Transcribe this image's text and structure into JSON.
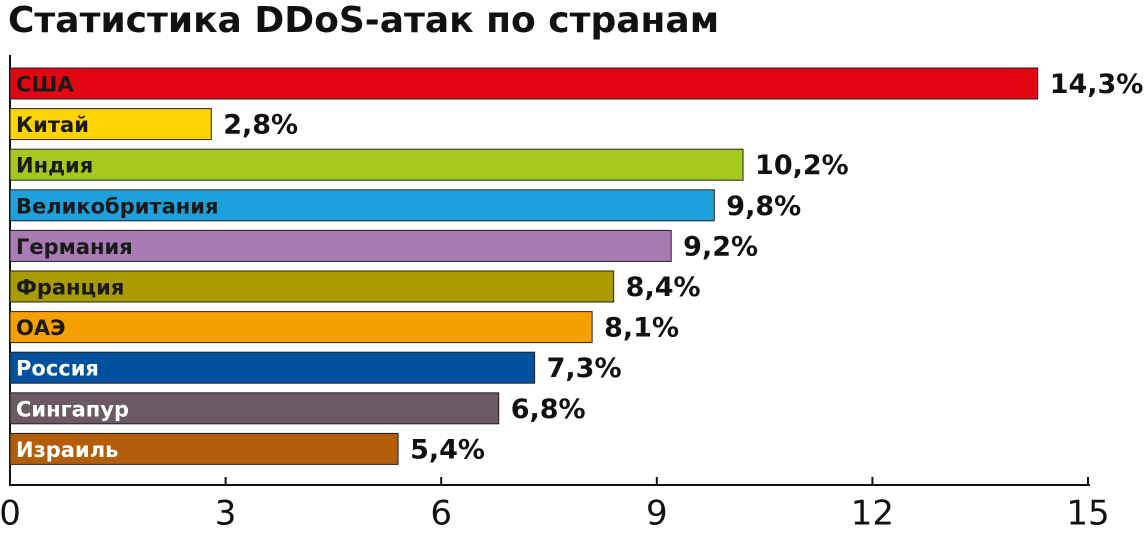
{
  "chart_data": {
    "type": "bar",
    "orientation": "horizontal",
    "title": "Статистика DDoS-атак по странам",
    "categories": [
      "США",
      "Китай",
      "Индия",
      "Великобритания",
      "Германия",
      "Франция",
      "ОАЭ",
      "Россия",
      "Сингапур",
      "Израиль"
    ],
    "values": [
      14.3,
      2.8,
      10.2,
      9.8,
      9.2,
      8.4,
      8.1,
      7.3,
      6.8,
      5.4
    ],
    "value_labels": [
      "14,3%",
      "2,8%",
      "10,2%",
      "9,8%",
      "9,2%",
      "8,4%",
      "8,1%",
      "7,3%",
      "6,8%",
      "5,4%"
    ],
    "colors": [
      "#e30613",
      "#ffd400",
      "#a6c81e",
      "#1ea0dc",
      "#a87bb5",
      "#a89c00",
      "#f5a000",
      "#0050a0",
      "#6b5a63",
      "#b35c0a"
    ],
    "label_colors": [
      "#1a1a1a",
      "#1a1a1a",
      "#1a1a1a",
      "#1a1a1a",
      "#1a1a1a",
      "#1a1a1a",
      "#1a1a1a",
      "#ffffff",
      "#ffffff",
      "#ffffff"
    ],
    "xlim": [
      0,
      15
    ],
    "xticks": [
      0,
      3,
      6,
      9,
      12,
      15
    ]
  }
}
